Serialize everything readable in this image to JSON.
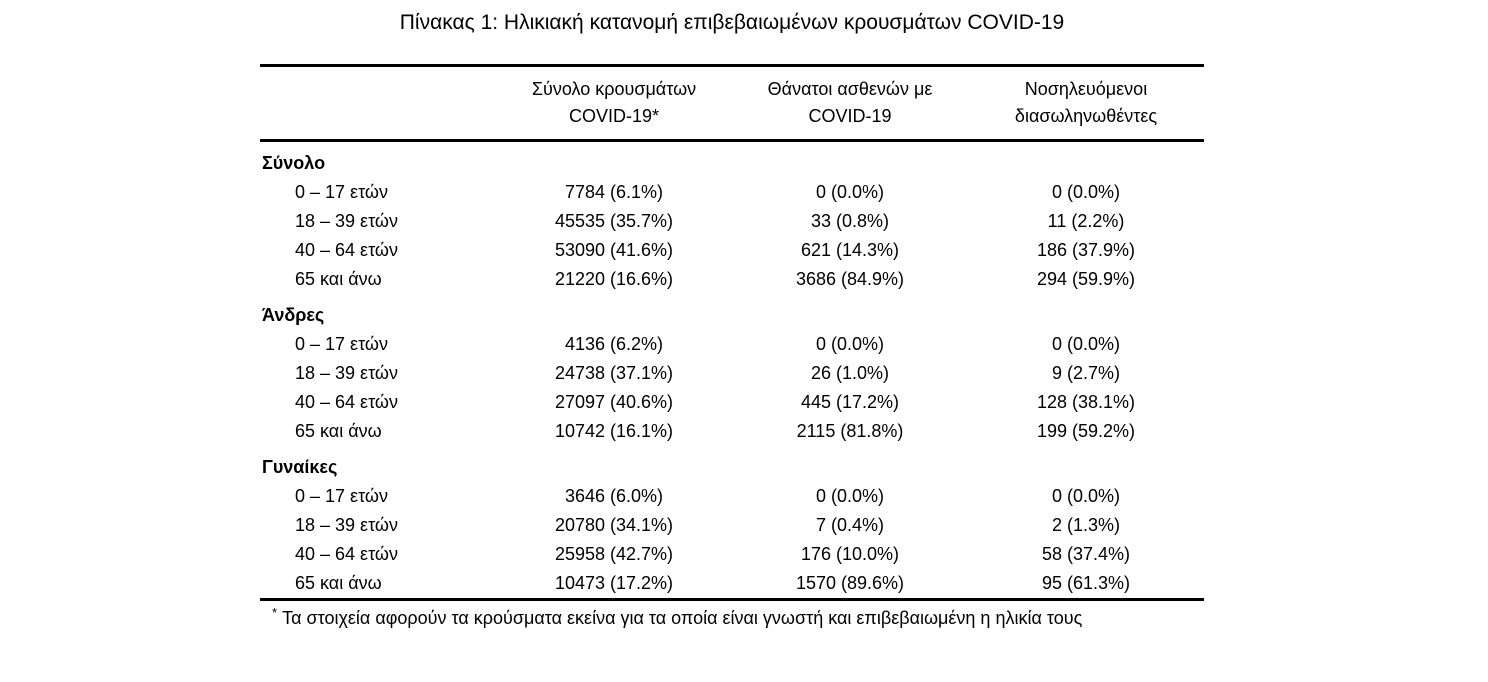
{
  "page": {
    "title": "Πίνακας 1: Ηλικιακή κατανομή επιβεβαιωμένων κρουσμάτων COVID-19",
    "footnote": {
      "marker": "*",
      "text": "Τα στοιχεία αφορούν τα κρούσματα εκείνα για τα οποία είναι γνωστή και επιβεβαιωμένη η ηλικία τους"
    }
  },
  "table": {
    "columns": [
      {
        "line1": "",
        "line2": ""
      },
      {
        "line1": "Σύνολο κρουσμάτων",
        "line2": "COVID-19*"
      },
      {
        "line1": "Θάνατοι ασθενών με",
        "line2": "COVID-19"
      },
      {
        "line1": "Νοσηλευόμενοι",
        "line2": "διασωληνωθέντες"
      }
    ],
    "sections": [
      {
        "header": "Σύνολο",
        "rows": [
          {
            "label": "0 – 17 ετών",
            "cases": "7784 (6.1%)",
            "deaths": "0 (0.0%)",
            "intubated": "0 (0.0%)"
          },
          {
            "label": "18 – 39 ετών",
            "cases": "45535 (35.7%)",
            "deaths": "33 (0.8%)",
            "intubated": "11 (2.2%)"
          },
          {
            "label": "40 – 64 ετών",
            "cases": "53090 (41.6%)",
            "deaths": "621 (14.3%)",
            "intubated": "186 (37.9%)"
          },
          {
            "label": "65 και άνω",
            "cases": "21220 (16.6%)",
            "deaths": "3686 (84.9%)",
            "intubated": "294 (59.9%)"
          }
        ]
      },
      {
        "header": "Άνδρες",
        "rows": [
          {
            "label": "0 – 17 ετών",
            "cases": "4136 (6.2%)",
            "deaths": "0 (0.0%)",
            "intubated": "0 (0.0%)"
          },
          {
            "label": "18 – 39 ετών",
            "cases": "24738 (37.1%)",
            "deaths": "26 (1.0%)",
            "intubated": "9 (2.7%)"
          },
          {
            "label": "40 – 64 ετών",
            "cases": "27097 (40.6%)",
            "deaths": "445 (17.2%)",
            "intubated": "128 (38.1%)"
          },
          {
            "label": "65 και άνω",
            "cases": "10742 (16.1%)",
            "deaths": "2115 (81.8%)",
            "intubated": "199 (59.2%)"
          }
        ]
      },
      {
        "header": "Γυναίκες",
        "rows": [
          {
            "label": "0 – 17 ετών",
            "cases": "3646 (6.0%)",
            "deaths": "0 (0.0%)",
            "intubated": "0 (0.0%)"
          },
          {
            "label": "18 – 39 ετών",
            "cases": "20780 (34.1%)",
            "deaths": "7 (0.4%)",
            "intubated": "2 (1.3%)"
          },
          {
            "label": "40 – 64 ετών",
            "cases": "25958 (42.7%)",
            "deaths": "176 (10.0%)",
            "intubated": "58 (37.4%)"
          },
          {
            "label": "65 και άνω",
            "cases": "10473 (17.2%)",
            "deaths": "1570 (89.6%)",
            "intubated": "95 (61.3%)"
          }
        ]
      }
    ]
  }
}
